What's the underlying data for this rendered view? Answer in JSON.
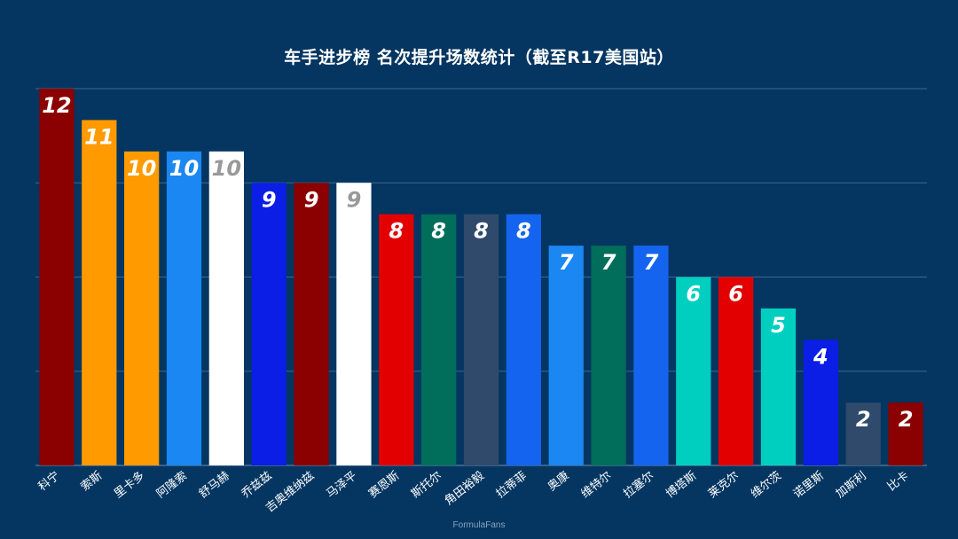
{
  "chart_data": {
    "type": "bar",
    "title": "车手进步榜 名次提升场数统计（截至R17美国站）",
    "xlabel": "",
    "ylabel": "",
    "ylim": [
      0,
      12
    ],
    "grid": true,
    "categories": [
      "科宁",
      "索斯",
      "里卡多",
      "阿隆索",
      "舒马赫",
      "乔兹兹",
      "吉奥维纳兹",
      "马泽平",
      "赛恩斯",
      "斯托尔",
      "角田裕毅",
      "拉蒂菲",
      "奥康",
      "维特尔",
      "拉塞尔",
      "博塔斯",
      "莱克尔",
      "维尔茨",
      "诺里斯",
      "加斯利",
      "比卡"
    ],
    "values": [
      12,
      11,
      10,
      10,
      10,
      9,
      9,
      9,
      8,
      8,
      8,
      8,
      7,
      7,
      7,
      6,
      6,
      5,
      4,
      2,
      2
    ],
    "colors": [
      "#8b0000",
      "#ff9a00",
      "#ff9a00",
      "#1a87f2",
      "#ffffff",
      "#0a1ee6",
      "#8b0000",
      "#ffffff",
      "#e30000",
      "#006e5a",
      "#2f4a6b",
      "#1464f0",
      "#1a87f2",
      "#006e5a",
      "#1464f0",
      "#00cfc0",
      "#e30000",
      "#00cfc0",
      "#0a1ee6",
      "#2f4a6b",
      "#8b0000"
    ],
    "label_colors": [
      "#ffffff",
      "#ffffff",
      "#ffffff",
      "#ffffff",
      "#999999",
      "#ffffff",
      "#ffffff",
      "#999999",
      "#ffffff",
      "#ffffff",
      "#ffffff",
      "#ffffff",
      "#ffffff",
      "#ffffff",
      "#ffffff",
      "#ffffff",
      "#ffffff",
      "#ffffff",
      "#ffffff",
      "#ffffff",
      "#ffffff"
    ]
  },
  "footer": {
    "watermark": "FormulaFans"
  }
}
